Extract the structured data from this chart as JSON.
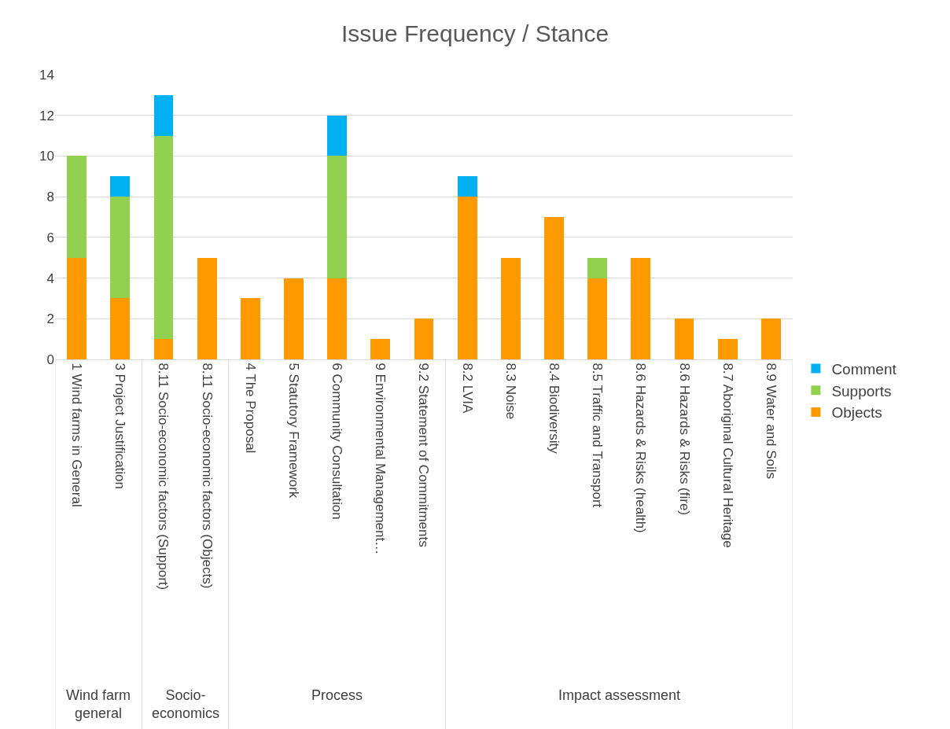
{
  "chart_data": {
    "type": "bar",
    "title": "Issue Frequency / Stance",
    "stacked": true,
    "categories": [
      "1 Wind farms in General",
      "3 Project Justification",
      "8.11 Socio-economic factors (Support)",
      "8.11 Socio-economic factors (Objects)",
      "4 The Proposal",
      "5 Statutory Framework",
      "6 Community Consultation",
      "9 Environmental Management…",
      "9.2 Statement of Commitments",
      "8.2 LVIA",
      "8.3 Noise",
      "8.4 Biodiversity",
      "8.5 Traffic and Transport",
      "8.6 Hazards & Risks (health)",
      "8.6 Hazards & Risks (fire)",
      "8.7 Aboriginal Cultural Heritage",
      "8.9 Water and Soils"
    ],
    "series": [
      {
        "name": "Objects",
        "color": "#ff9900",
        "values": [
          5,
          3,
          1,
          5,
          3,
          4,
          4,
          1,
          2,
          8,
          5,
          7,
          4,
          5,
          2,
          1,
          2
        ]
      },
      {
        "name": "Supports",
        "color": "#92d050",
        "values": [
          5,
          5,
          10,
          0,
          0,
          0,
          6,
          0,
          0,
          0,
          0,
          0,
          1,
          0,
          0,
          0,
          0
        ]
      },
      {
        "name": "Comment",
        "color": "#00b0f0",
        "values": [
          0,
          1,
          2,
          0,
          0,
          0,
          2,
          0,
          0,
          1,
          0,
          0,
          0,
          0,
          0,
          0,
          0
        ]
      }
    ],
    "ylim": [
      0,
      14
    ],
    "yticks": [
      0,
      2,
      4,
      6,
      8,
      10,
      12,
      14
    ],
    "grid": "y",
    "legend": "right",
    "annotations": [
      "Wind farm general",
      "Socio-economics",
      "Process",
      "Impact assessment"
    ]
  }
}
